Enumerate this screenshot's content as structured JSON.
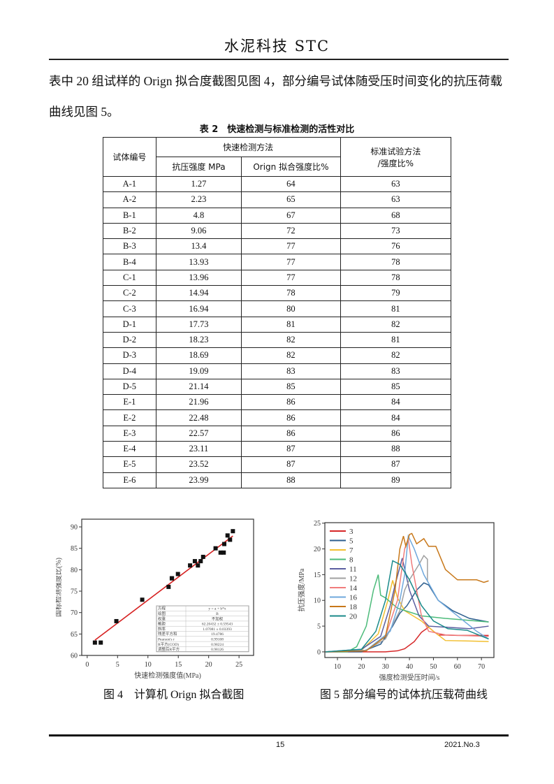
{
  "header": {
    "title": "水泥科技 STC"
  },
  "paragraph": "表中 20 组试样的 Orign 拟合度截图见图 4，部分编号试体随受压时间变化的抗压荷载曲线见图 5。",
  "table": {
    "caption": "表 2　快速检测与标准检测的活性对比",
    "headers": {
      "id": "试体编号",
      "rapid": "快速检测方法",
      "strength": "抗压强度 MPa",
      "fit": "Orign 拟合强度比%",
      "standard_line1": "标准试验方法",
      "standard_line2": "/强度比%"
    },
    "rows": [
      [
        "A-1",
        "1.27",
        "64",
        "63"
      ],
      [
        "A-2",
        "2.23",
        "65",
        "63"
      ],
      [
        "B-1",
        "4.8",
        "67",
        "68"
      ],
      [
        "B-2",
        "9.06",
        "72",
        "73"
      ],
      [
        "B-3",
        "13.4",
        "77",
        "76"
      ],
      [
        "B-4",
        "13.93",
        "77",
        "78"
      ],
      [
        "C-1",
        "13.96",
        "77",
        "78"
      ],
      [
        "C-2",
        "14.94",
        "78",
        "79"
      ],
      [
        "C-3",
        "16.94",
        "80",
        "81"
      ],
      [
        "D-1",
        "17.73",
        "81",
        "82"
      ],
      [
        "D-2",
        "18.23",
        "82",
        "81"
      ],
      [
        "D-3",
        "18.69",
        "82",
        "82"
      ],
      [
        "D-4",
        "19.09",
        "83",
        "83"
      ],
      [
        "D-5",
        "21.14",
        "85",
        "85"
      ],
      [
        "E-1",
        "21.96",
        "86",
        "84"
      ],
      [
        "E-2",
        "22.48",
        "86",
        "84"
      ],
      [
        "E-3",
        "22.57",
        "86",
        "86"
      ],
      [
        "E-4",
        "23.11",
        "87",
        "88"
      ],
      [
        "E-5",
        "23.52",
        "87",
        "87"
      ],
      [
        "E-6",
        "23.99",
        "88",
        "89"
      ]
    ]
  },
  "chart_data": [
    {
      "type": "scatter",
      "xlabel": "快速检测强度值(MPa)",
      "ylabel": "国标检测强度比(%)",
      "xlim": [
        -0.9,
        27.4
      ],
      "ylim": [
        60,
        91.8
      ],
      "xticks": [
        "0",
        "5",
        "10",
        "15",
        "20",
        "25"
      ],
      "yticks": [
        "60",
        "65",
        "70",
        "75",
        "80",
        "85",
        "90"
      ],
      "x": [
        1.27,
        2.23,
        4.8,
        9.06,
        13.4,
        13.93,
        13.96,
        14.94,
        16.94,
        17.73,
        18.23,
        18.69,
        19.09,
        21.14,
        21.96,
        22.48,
        22.57,
        23.11,
        23.52,
        23.99
      ],
      "y": [
        63,
        63,
        68,
        73,
        76,
        78,
        78,
        79,
        81,
        82,
        81,
        82,
        83,
        85,
        84,
        84,
        86,
        88,
        87,
        89
      ],
      "fit": {
        "intercept": 62.20432,
        "slope": 1.07081,
        "color": "#d62020"
      },
      "stats_table": [
        [
          "方程",
          "y = a + b*x"
        ],
        [
          "绘图",
          "B"
        ],
        [
          "权重",
          "不加权"
        ],
        [
          "截距",
          "62.20432 ± 0.59543"
        ],
        [
          "斜率",
          "1.07081 ± 0.03393"
        ],
        [
          "残差平方和",
          "19.4786"
        ],
        [
          "Pearson's r",
          "0.99108"
        ],
        [
          "R平方(COD)",
          "0.98224"
        ],
        [
          "调整后R平方",
          "0.98126"
        ]
      ]
    },
    {
      "type": "line",
      "xlabel": "强度检测受压时间/s",
      "ylabel": "抗压强度/MPa",
      "xlim": [
        4.75,
        75.2
      ],
      "ylim": [
        -1.1,
        25.1
      ],
      "xticks": [
        "10",
        "20",
        "30",
        "40",
        "50",
        "60",
        "70"
      ],
      "yticks": [
        "0",
        "5",
        "10",
        "15",
        "20",
        "25"
      ],
      "legend": "top-left",
      "series": [
        {
          "name": "3",
          "color": "#d62728",
          "points": [
            [
              5,
              0
            ],
            [
              30,
              0
            ],
            [
              35,
              0.2
            ],
            [
              38,
              0.6
            ],
            [
              42,
              2
            ],
            [
              45,
              3.8
            ],
            [
              48,
              4.8
            ],
            [
              50,
              4
            ],
            [
              52,
              3.3
            ],
            [
              60,
              3.2
            ],
            [
              73,
              3.2
            ]
          ]
        },
        {
          "name": "5",
          "color": "#2e5f8f",
          "points": [
            [
              5,
              0
            ],
            [
              20,
              0
            ],
            [
              28,
              1.5
            ],
            [
              33,
              5
            ],
            [
              36,
              7.5
            ],
            [
              39,
              9
            ],
            [
              43,
              12
            ],
            [
              46,
              13.4
            ],
            [
              48,
              13
            ],
            [
              52,
              10
            ],
            [
              58,
              8
            ],
            [
              65,
              6.5
            ],
            [
              73,
              5.8
            ]
          ]
        },
        {
          "name": "7",
          "color": "#f2bf30",
          "points": [
            [
              5,
              0
            ],
            [
              20,
              0.3
            ],
            [
              27,
              3.5
            ],
            [
              31,
              10
            ],
            [
              33,
              13.9
            ],
            [
              35,
              10.5
            ],
            [
              38,
              8
            ],
            [
              45,
              6
            ],
            [
              50,
              4
            ],
            [
              55,
              2.2
            ],
            [
              65,
              2.1
            ],
            [
              73,
              2
            ]
          ]
        },
        {
          "name": "8",
          "color": "#4cbb7a",
          "points": [
            [
              5,
              0
            ],
            [
              14,
              0
            ],
            [
              18,
              1
            ],
            [
              22,
              5
            ],
            [
              25,
              12
            ],
            [
              27,
              15
            ],
            [
              28,
              11
            ],
            [
              30,
              10.5
            ],
            [
              35,
              8.5
            ],
            [
              45,
              7
            ],
            [
              55,
              6.5
            ],
            [
              73,
              5.8
            ]
          ]
        },
        {
          "name": "11",
          "color": "#5b5ea0",
          "points": [
            [
              5,
              0
            ],
            [
              20,
              0.5
            ],
            [
              28,
              3
            ],
            [
              32,
              9
            ],
            [
              34,
              13
            ],
            [
              37,
              18.2
            ],
            [
              40,
              12
            ],
            [
              44,
              7
            ],
            [
              48,
              5
            ],
            [
              55,
              4.8
            ],
            [
              65,
              4.5
            ],
            [
              73,
              5
            ]
          ]
        },
        {
          "name": "12",
          "color": "#a0a0a0",
          "points": [
            [
              5,
              0
            ],
            [
              22,
              0.3
            ],
            [
              30,
              2.5
            ],
            [
              36,
              8
            ],
            [
              38,
              12
            ],
            [
              40,
              14
            ],
            [
              44,
              17
            ],
            [
              46,
              18.7
            ],
            [
              47.5,
              18
            ],
            [
              47.5,
              13.7
            ]
          ]
        },
        {
          "name": "14",
          "color": "#f07c7c",
          "points": [
            [
              5,
              0
            ],
            [
              22,
              0.3
            ],
            [
              30,
              3
            ],
            [
              35,
              10
            ],
            [
              38,
              20
            ],
            [
              39.5,
              22
            ],
            [
              41,
              17
            ],
            [
              43,
              12
            ],
            [
              45,
              7
            ],
            [
              48,
              4
            ],
            [
              55,
              3.3
            ],
            [
              73,
              3
            ]
          ]
        },
        {
          "name": "16",
          "color": "#6fa8dc",
          "points": [
            [
              5,
              0
            ],
            [
              22,
              0.3
            ],
            [
              32,
              4
            ],
            [
              36,
              10
            ],
            [
              38,
              15
            ],
            [
              39.5,
              22.5
            ],
            [
              42,
              20
            ],
            [
              46,
              15
            ],
            [
              52,
              10
            ],
            [
              60,
              7
            ],
            [
              68,
              4
            ],
            [
              73,
              2.5
            ]
          ]
        },
        {
          "name": "18",
          "color": "#c8781a",
          "points": [
            [
              5,
              0
            ],
            [
              22,
              0.2
            ],
            [
              30,
              3
            ],
            [
              34,
              12
            ],
            [
              36,
              20
            ],
            [
              37.5,
              22.5
            ],
            [
              38.5,
              20.5
            ],
            [
              40,
              22.8
            ],
            [
              41,
              23
            ],
            [
              43,
              21
            ],
            [
              46,
              22
            ],
            [
              48,
              20.5
            ],
            [
              51,
              20.5
            ],
            [
              55,
              16
            ],
            [
              60,
              14
            ],
            [
              68,
              14
            ],
            [
              71,
              13.5
            ],
            [
              73,
              13.8
            ]
          ]
        },
        {
          "name": "20",
          "color": "#1a8a8a",
          "points": [
            [
              5,
              0
            ],
            [
              20,
              0.5
            ],
            [
              26,
              4
            ],
            [
              30,
              10
            ],
            [
              33,
              17.7
            ],
            [
              36,
              17
            ],
            [
              40,
              14
            ],
            [
              45,
              9
            ],
            [
              50,
              6
            ],
            [
              56,
              4.5
            ],
            [
              64,
              4.2
            ],
            [
              73,
              2.5
            ]
          ]
        }
      ]
    }
  ],
  "figures": {
    "fig4_caption": "图 4　计算机 Orign 拟合截图",
    "fig5_caption": "图 5  部分编号的试体抗压载荷曲线"
  },
  "footer": {
    "page": "15",
    "issue": "2021.No.3"
  }
}
